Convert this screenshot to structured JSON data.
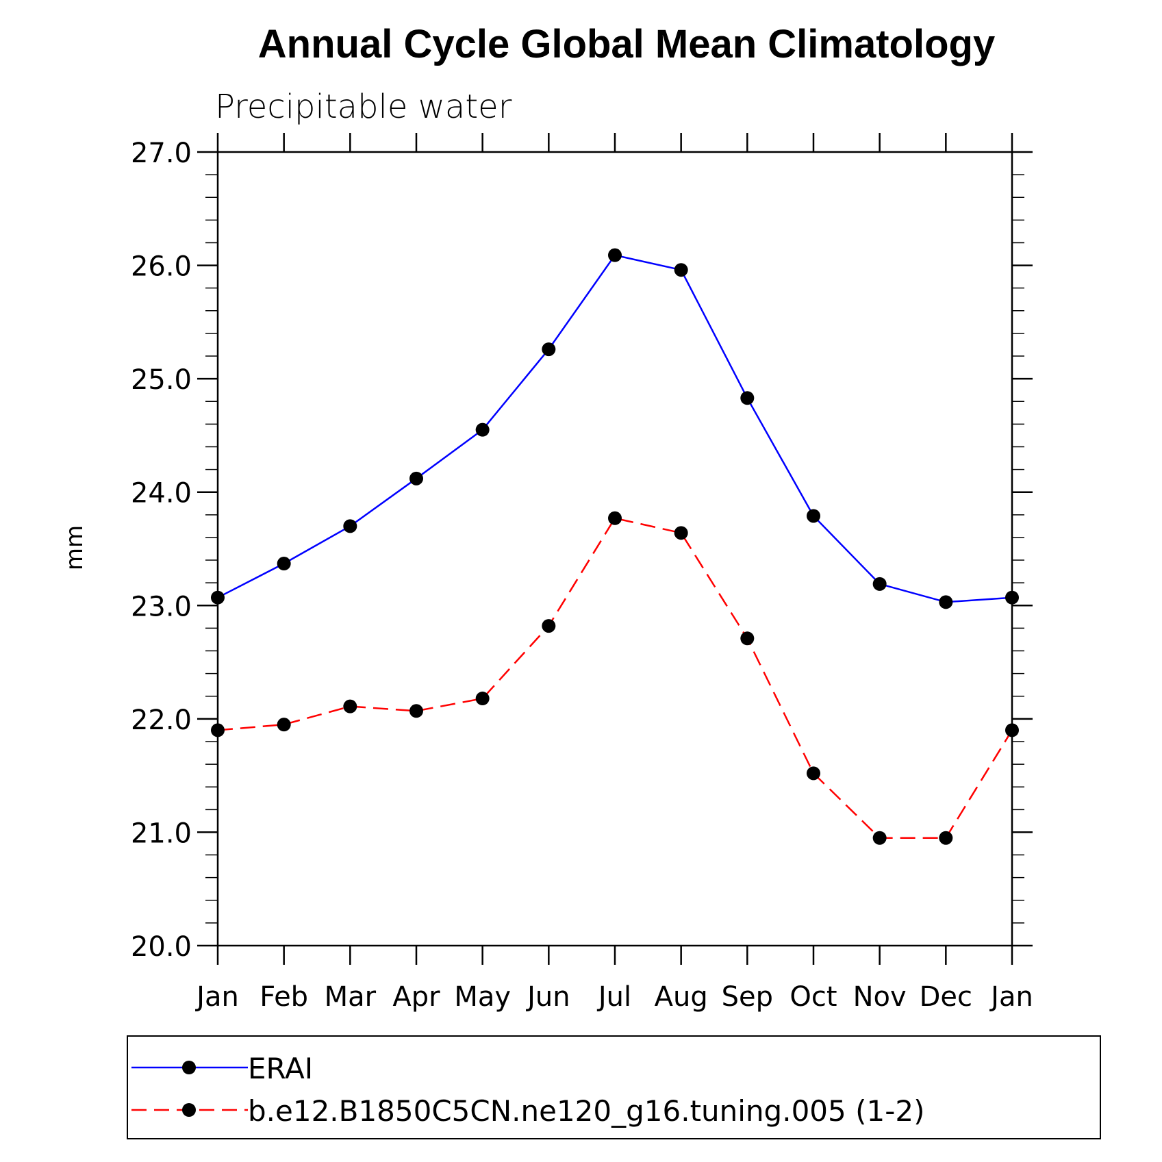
{
  "chart_data": {
    "type": "line",
    "title": "Annual Cycle Global Mean Climatology",
    "subtitle": "Precipitable water",
    "xlabel": "",
    "ylabel": "mm",
    "categories": [
      "Jan",
      "Feb",
      "Mar",
      "Apr",
      "May",
      "Jun",
      "Jul",
      "Aug",
      "Sep",
      "Oct",
      "Nov",
      "Dec",
      "Jan"
    ],
    "ylim": [
      20.0,
      27.0
    ],
    "yticks": [
      "20.0",
      "21.0",
      "22.0",
      "23.0",
      "24.0",
      "25.0",
      "26.0",
      "27.0"
    ],
    "series": [
      {
        "name": "ERAI",
        "color": "#0000ff",
        "dash": "solid",
        "values": [
          23.07,
          23.37,
          23.7,
          24.12,
          24.55,
          25.26,
          26.09,
          25.96,
          24.83,
          23.79,
          23.19,
          23.03,
          23.07
        ]
      },
      {
        "name": "b.e12.B1850C5CN.ne120_g16.tuning.005 (1-2)",
        "color": "#ff0000",
        "dash": "dashed",
        "values": [
          21.9,
          21.95,
          22.11,
          22.07,
          22.18,
          22.82,
          23.77,
          23.64,
          22.71,
          21.52,
          20.95,
          20.95,
          21.9
        ]
      }
    ],
    "grid": false,
    "legend": "bottom",
    "marker_color": "#000000"
  }
}
